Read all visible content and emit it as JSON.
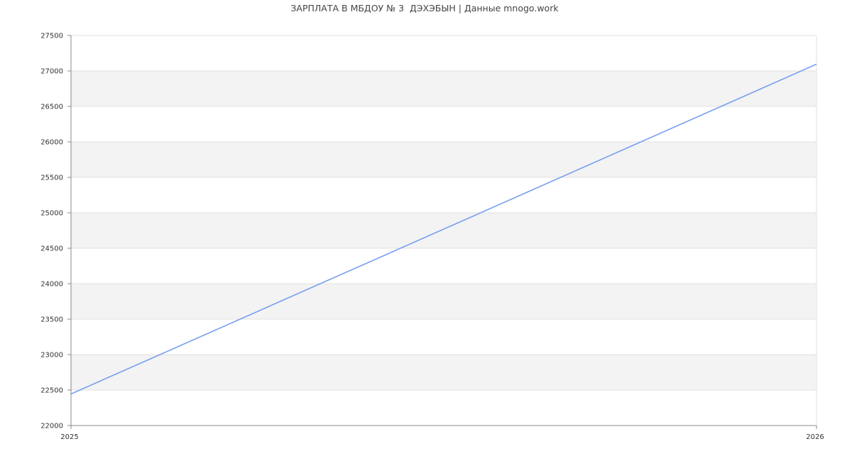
{
  "chart_data": {
    "type": "line",
    "title": "ЗАРПЛАТА В МБДОУ № 3  ДЭХЭБЫН | Данные mnogo.work",
    "xlabel": "",
    "ylabel": "",
    "x": [
      2025,
      2026
    ],
    "series": [
      {
        "values": [
          22445,
          27095
        ],
        "color": "#769ff0"
      }
    ],
    "xlim": [
      2025,
      2026
    ],
    "ylim": [
      22000,
      27500
    ],
    "x_ticks": [
      "2025",
      "2026"
    ],
    "y_ticks": [
      "22000",
      "22500",
      "23000",
      "23500",
      "24000",
      "24500",
      "25000",
      "25500",
      "26000",
      "26500",
      "27000",
      "27500"
    ],
    "grid": true,
    "band_color": "#f3f3f3",
    "legend": "none"
  }
}
